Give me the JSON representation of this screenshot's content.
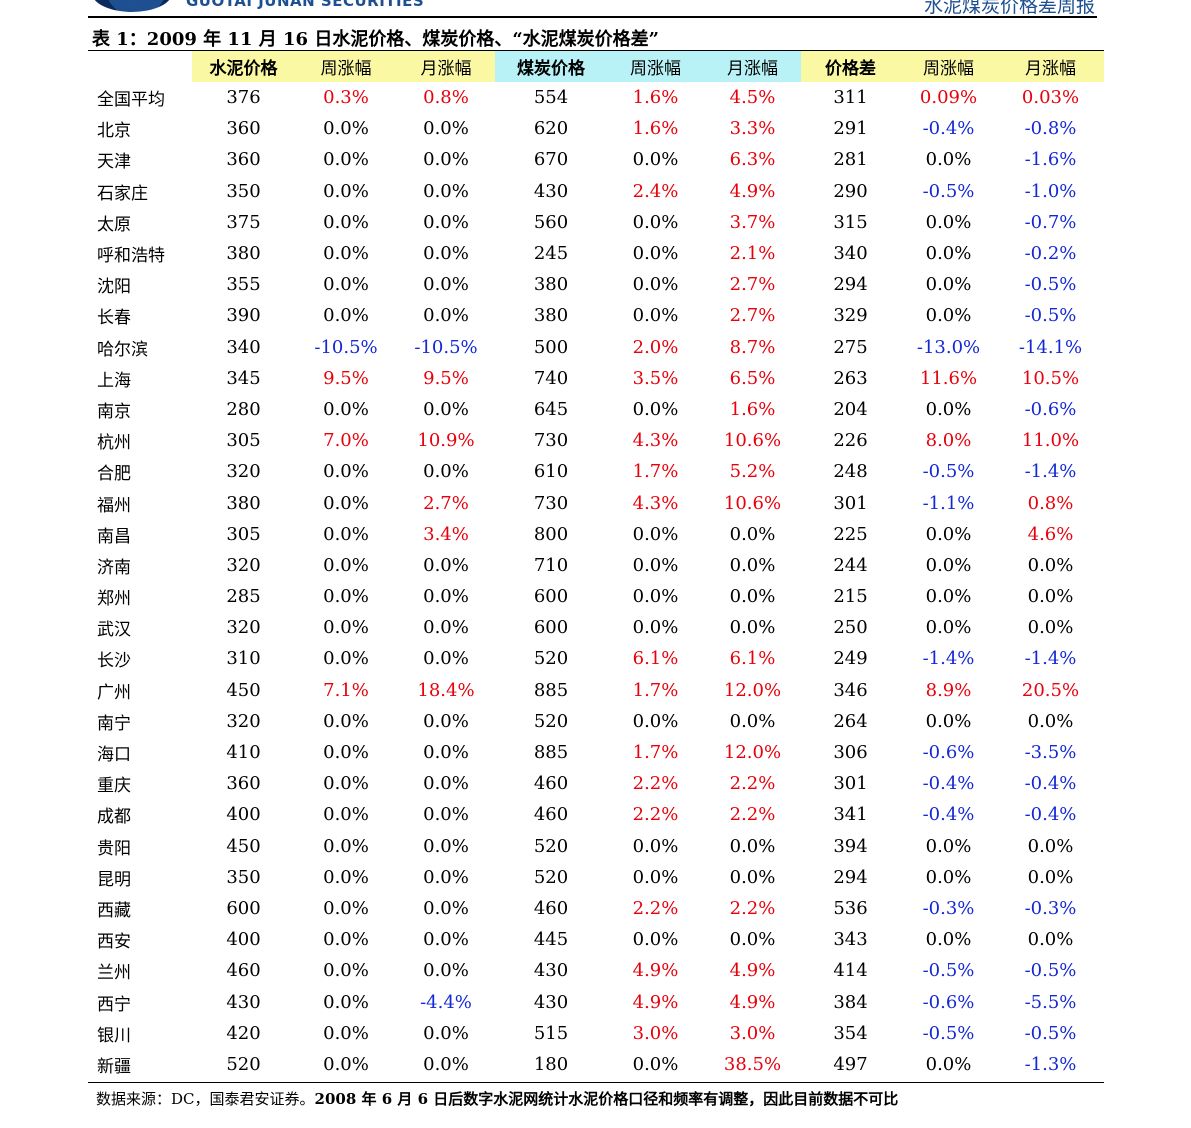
{
  "header": {
    "company": "GUOTAI JUNAN SECURITIES",
    "report": "水泥煤炭价格差周报"
  },
  "table_title": "表 1：2009 年 11 月 16 日水泥价格、煤炭价格、“水泥煤炭价格差”",
  "columns": [
    "",
    "水泥价格",
    "周涨幅",
    "月涨幅",
    "煤炭价格",
    "周涨幅",
    "月涨幅",
    "价格差",
    "周涨幅",
    "月涨幅"
  ],
  "colors": {
    "up": "#e8000b",
    "down": "#1428d6",
    "cement_header": "#fbf8a3",
    "coal_header": "#b8f2f7"
  },
  "rows": [
    [
      "全国平均",
      "376",
      "0.3%",
      "0.8%",
      "554",
      "1.6%",
      "4.5%",
      "311",
      "0.09%",
      "0.03%"
    ],
    [
      "北京",
      "360",
      "0.0%",
      "0.0%",
      "620",
      "1.6%",
      "3.3%",
      "291",
      "-0.4%",
      "-0.8%"
    ],
    [
      "天津",
      "360",
      "0.0%",
      "0.0%",
      "670",
      "0.0%",
      "6.3%",
      "281",
      "0.0%",
      "-1.6%"
    ],
    [
      "石家庄",
      "350",
      "0.0%",
      "0.0%",
      "430",
      "2.4%",
      "4.9%",
      "290",
      "-0.5%",
      "-1.0%"
    ],
    [
      "太原",
      "375",
      "0.0%",
      "0.0%",
      "560",
      "0.0%",
      "3.7%",
      "315",
      "0.0%",
      "-0.7%"
    ],
    [
      "呼和浩特",
      "380",
      "0.0%",
      "0.0%",
      "245",
      "0.0%",
      "2.1%",
      "340",
      "0.0%",
      "-0.2%"
    ],
    [
      "沈阳",
      "355",
      "0.0%",
      "0.0%",
      "380",
      "0.0%",
      "2.7%",
      "294",
      "0.0%",
      "-0.5%"
    ],
    [
      "长春",
      "390",
      "0.0%",
      "0.0%",
      "380",
      "0.0%",
      "2.7%",
      "329",
      "0.0%",
      "-0.5%"
    ],
    [
      "哈尔滨",
      "340",
      "-10.5%",
      "-10.5%",
      "500",
      "2.0%",
      "8.7%",
      "275",
      "-13.0%",
      "-14.1%"
    ],
    [
      "上海",
      "345",
      "9.5%",
      "9.5%",
      "740",
      "3.5%",
      "6.5%",
      "263",
      "11.6%",
      "10.5%"
    ],
    [
      "南京",
      "280",
      "0.0%",
      "0.0%",
      "645",
      "0.0%",
      "1.6%",
      "204",
      "0.0%",
      "-0.6%"
    ],
    [
      "杭州",
      "305",
      "7.0%",
      "10.9%",
      "730",
      "4.3%",
      "10.6%",
      "226",
      "8.0%",
      "11.0%"
    ],
    [
      "合肥",
      "320",
      "0.0%",
      "0.0%",
      "610",
      "1.7%",
      "5.2%",
      "248",
      "-0.5%",
      "-1.4%"
    ],
    [
      "福州",
      "380",
      "0.0%",
      "2.7%",
      "730",
      "4.3%",
      "10.6%",
      "301",
      "-1.1%",
      "0.8%"
    ],
    [
      "南昌",
      "305",
      "0.0%",
      "3.4%",
      "800",
      "0.0%",
      "0.0%",
      "225",
      "0.0%",
      "4.6%"
    ],
    [
      "济南",
      "320",
      "0.0%",
      "0.0%",
      "710",
      "0.0%",
      "0.0%",
      "244",
      "0.0%",
      "0.0%"
    ],
    [
      "郑州",
      "285",
      "0.0%",
      "0.0%",
      "600",
      "0.0%",
      "0.0%",
      "215",
      "0.0%",
      "0.0%"
    ],
    [
      "武汉",
      "320",
      "0.0%",
      "0.0%",
      "600",
      "0.0%",
      "0.0%",
      "250",
      "0.0%",
      "0.0%"
    ],
    [
      "长沙",
      "310",
      "0.0%",
      "0.0%",
      "520",
      "6.1%",
      "6.1%",
      "249",
      "-1.4%",
      "-1.4%"
    ],
    [
      "广州",
      "450",
      "7.1%",
      "18.4%",
      "885",
      "1.7%",
      "12.0%",
      "346",
      "8.9%",
      "20.5%"
    ],
    [
      "南宁",
      "320",
      "0.0%",
      "0.0%",
      "520",
      "0.0%",
      "0.0%",
      "264",
      "0.0%",
      "0.0%"
    ],
    [
      "海口",
      "410",
      "0.0%",
      "0.0%",
      "885",
      "1.7%",
      "12.0%",
      "306",
      "-0.6%",
      "-3.5%"
    ],
    [
      "重庆",
      "360",
      "0.0%",
      "0.0%",
      "460",
      "2.2%",
      "2.2%",
      "301",
      "-0.4%",
      "-0.4%"
    ],
    [
      "成都",
      "400",
      "0.0%",
      "0.0%",
      "460",
      "2.2%",
      "2.2%",
      "341",
      "-0.4%",
      "-0.4%"
    ],
    [
      "贵阳",
      "450",
      "0.0%",
      "0.0%",
      "520",
      "0.0%",
      "0.0%",
      "394",
      "0.0%",
      "0.0%"
    ],
    [
      "昆明",
      "350",
      "0.0%",
      "0.0%",
      "520",
      "0.0%",
      "0.0%",
      "294",
      "0.0%",
      "0.0%"
    ],
    [
      "西藏",
      "600",
      "0.0%",
      "0.0%",
      "460",
      "2.2%",
      "2.2%",
      "536",
      "-0.3%",
      "-0.3%"
    ],
    [
      "西安",
      "400",
      "0.0%",
      "0.0%",
      "445",
      "0.0%",
      "0.0%",
      "343",
      "0.0%",
      "0.0%"
    ],
    [
      "兰州",
      "460",
      "0.0%",
      "0.0%",
      "430",
      "4.9%",
      "4.9%",
      "414",
      "-0.5%",
      "-0.5%"
    ],
    [
      "西宁",
      "430",
      "0.0%",
      "-4.4%",
      "430",
      "4.9%",
      "4.9%",
      "384",
      "-0.6%",
      "-5.5%"
    ],
    [
      "银川",
      "420",
      "0.0%",
      "0.0%",
      "515",
      "3.0%",
      "3.0%",
      "354",
      "-0.5%",
      "-0.5%"
    ],
    [
      "新疆",
      "520",
      "0.0%",
      "0.0%",
      "180",
      "0.0%",
      "38.5%",
      "497",
      "0.0%",
      "-1.3%"
    ]
  ],
  "footer": {
    "source_prefix": "数据来源：DC，国泰君安证券。",
    "source_note": "2008 年 6 月 6 日后数字水泥网统计水泥价格口径和频率有调整，因此目前数据不可比"
  }
}
